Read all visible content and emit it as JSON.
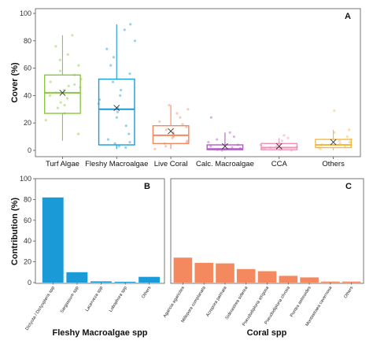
{
  "chart_data": [
    {
      "panel": "A",
      "type": "box",
      "ylabel": "Cover (%)",
      "ylim": [
        0,
        100
      ],
      "yticks": [
        0,
        20,
        40,
        60,
        80,
        100
      ],
      "grid": false,
      "categories": [
        "Turf Algae",
        "Fleshy Macroalgae",
        "Live Coral",
        "Calc. Macroalgae",
        "CCA",
        "Others"
      ],
      "colors": [
        "#8cc63f",
        "#1a9bd7",
        "#f4895f",
        "#b05cc6",
        "#f28fb5",
        "#f5b942"
      ],
      "boxes": [
        {
          "min": 7,
          "q1": 27,
          "median": 42,
          "q3": 55,
          "max": 84,
          "mean": 42
        },
        {
          "min": 1,
          "q1": 4,
          "median": 30,
          "q3": 52,
          "max": 92,
          "mean": 31
        },
        {
          "min": 1,
          "q1": 5,
          "median": 11,
          "q3": 18,
          "max": 33,
          "mean": 14
        },
        {
          "min": 0,
          "q1": 0.5,
          "median": 1,
          "q3": 4,
          "max": 13,
          "mean": 3
        },
        {
          "min": 0,
          "q1": 0.5,
          "median": 2,
          "q3": 5,
          "max": 9,
          "mean": 3
        },
        {
          "min": 0,
          "q1": 2,
          "median": 4,
          "q3": 8,
          "max": 15,
          "mean": 6
        }
      ],
      "points": [
        [
          12,
          22,
          27,
          31,
          35,
          38,
          40,
          42,
          44,
          46,
          48,
          50,
          52,
          55,
          58,
          62,
          66,
          70,
          76,
          84,
          33,
          47
        ],
        [
          2,
          3,
          5,
          8,
          12,
          18,
          24,
          28,
          31,
          34,
          40,
          44,
          50,
          56,
          62,
          68,
          74,
          80,
          88,
          92,
          6,
          37
        ],
        [
          1,
          3,
          5,
          7,
          9,
          10,
          11,
          12,
          13,
          15,
          17,
          19,
          21,
          24,
          27,
          30,
          33,
          6
        ],
        [
          0,
          0.5,
          1,
          1,
          1.5,
          2,
          3,
          4,
          6,
          8,
          10,
          13,
          24
        ],
        [
          0,
          0.5,
          1,
          1.5,
          2,
          2.5,
          3,
          4,
          5,
          7,
          9,
          11
        ],
        [
          1,
          2,
          3,
          4,
          4,
          5,
          6,
          7,
          8,
          10,
          13,
          15,
          29
        ]
      ]
    },
    {
      "panel": "B",
      "type": "bar",
      "ylabel": "Contribution (%)",
      "xlabel": "Fleshy Macroalgae spp",
      "ylim": [
        0,
        100
      ],
      "yticks": [
        0,
        20,
        40,
        60,
        80,
        100
      ],
      "color": "#1a9bd7",
      "categories": [
        "Dictyota / Dictyopteris spp",
        "Sargassum spp",
        "Lacerveza spp",
        "Lobophora spp",
        "Others"
      ],
      "values": [
        82,
        10,
        1.2,
        0.8,
        5.5
      ]
    },
    {
      "panel": "C",
      "type": "bar",
      "xlabel": "Coral spp",
      "ylim": [
        0,
        100
      ],
      "color": "#f4895f",
      "categories": [
        "Agaricia agaricites",
        "Millepora complanata",
        "Acropora palmata",
        "Siderastrea siderea",
        "Pseudodiploria strigosa",
        "Pseudodiploria clivosa",
        "Porites astreoides",
        "Montastraea cavernosa",
        "Others"
      ],
      "values": [
        24,
        19,
        18.5,
        13,
        11,
        6.5,
        5,
        1,
        1
      ]
    }
  ]
}
